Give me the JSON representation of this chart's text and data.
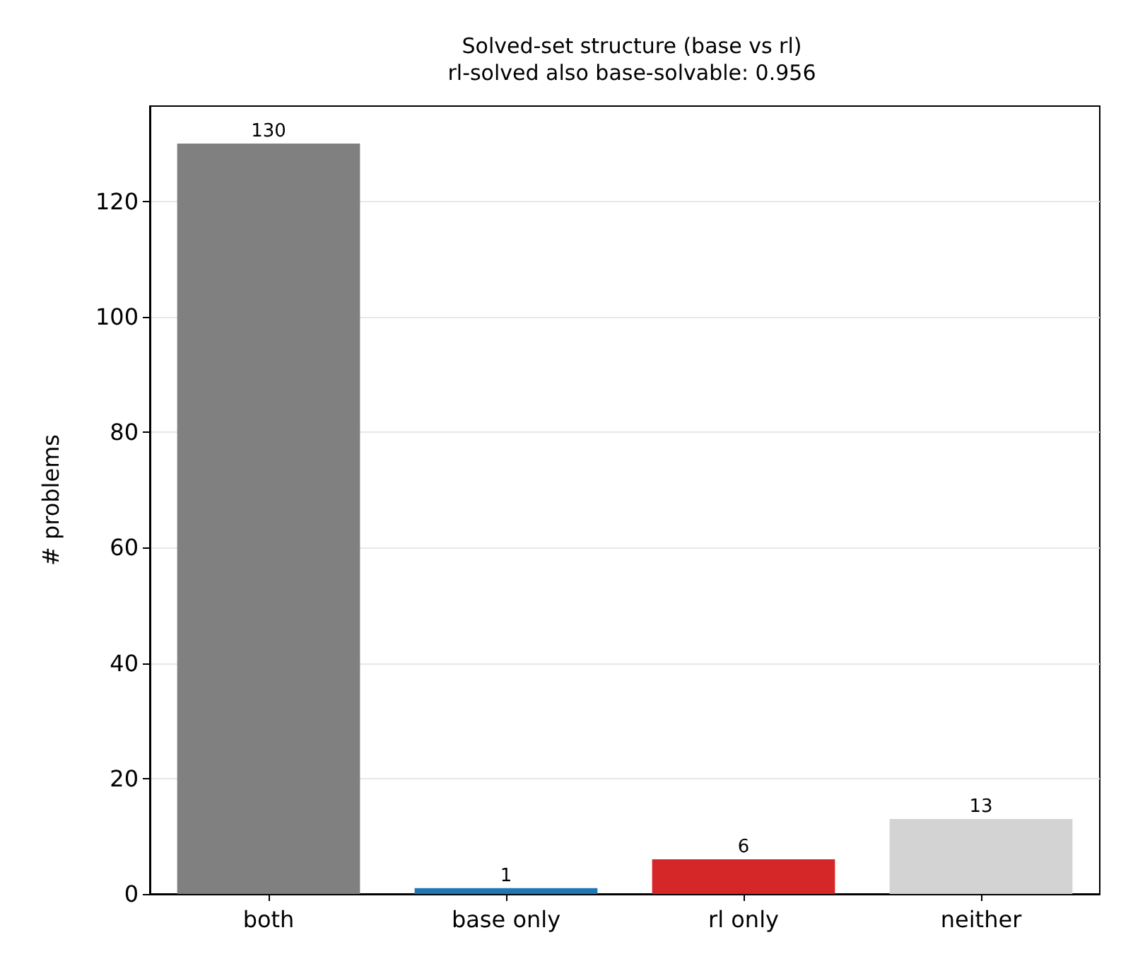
{
  "chart_data": {
    "type": "bar",
    "title": "Solved-set structure (base vs rl)",
    "subtitle": "rl-solved also base-solvable: 0.956",
    "ylabel": "# problems",
    "categories": [
      "both",
      "base only",
      "rl only",
      "neither"
    ],
    "values": [
      130,
      1,
      6,
      13
    ],
    "colors": [
      "#808080",
      "#1f77b4",
      "#d62728",
      "#d3d3d3"
    ],
    "ylim": [
      0,
      136.5
    ],
    "yticks": [
      0,
      20,
      40,
      60,
      80,
      100,
      120
    ],
    "grid": "y",
    "data_labels": true
  }
}
